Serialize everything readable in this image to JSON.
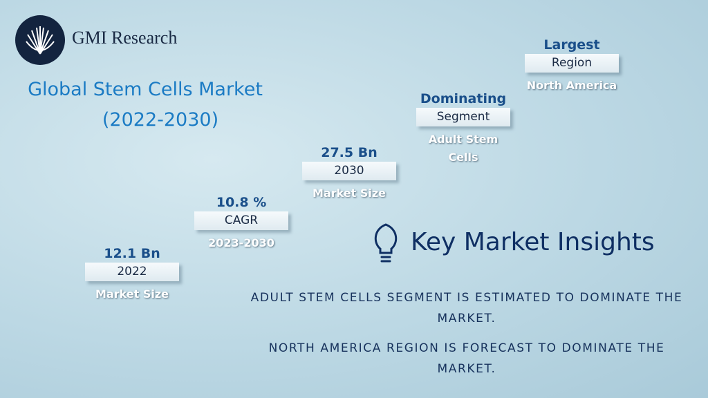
{
  "brand": "GMI Research",
  "title": {
    "line1": "Global Stem Cells Market",
    "line2": "(2022-2030)"
  },
  "steps": [
    {
      "heading": "12.1 Bn",
      "label": "2022",
      "caption": "Market Size"
    },
    {
      "heading": "10.8 %",
      "label": "CAGR",
      "caption": "2023-2030"
    },
    {
      "heading": "27.5 Bn",
      "label": "2030",
      "caption": "Market Size"
    },
    {
      "heading": "Dominating",
      "label": "Segment",
      "caption": "Adult Stem Cells"
    },
    {
      "heading": "Largest",
      "label": "Region",
      "caption": "North America"
    }
  ],
  "insights": {
    "title": "Key Market Insights",
    "items": [
      "ADULT STEM CELLS SEGMENT IS ESTIMATED TO DOMINATE THE MARKET.",
      "NORTH AMERICA REGION IS FORECAST TO DOMINATE THE MARKET."
    ]
  }
}
